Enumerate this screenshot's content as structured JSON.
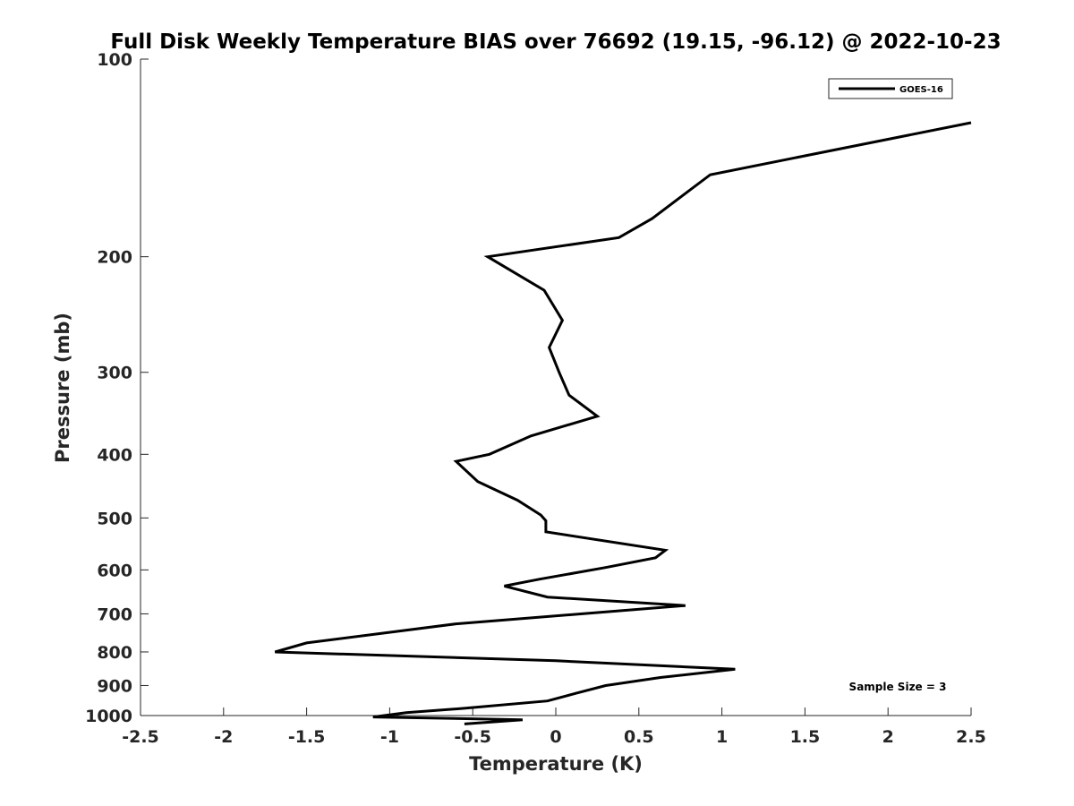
{
  "chart_data": {
    "type": "line",
    "title": "Full Disk Weekly Temperature BIAS over 76692 (19.15, -96.12) @ 2022-10-23",
    "xlabel": "Temperature (K)",
    "ylabel": "Pressure (mb)",
    "xlim": [
      -2.5,
      2.5
    ],
    "ylim": [
      100,
      1000
    ],
    "yscale": "log",
    "y_reversed": true,
    "xticks": [
      -2.5,
      -2,
      -1.5,
      -1,
      -0.5,
      0,
      0.5,
      1,
      1.5,
      2,
      2.5
    ],
    "xtick_labels": [
      "-2.5",
      "-2",
      "-1.5",
      "-1",
      "-0.5",
      "0",
      "0.5",
      "1",
      "1.5",
      "2",
      "2.5"
    ],
    "yticks": [
      100,
      200,
      300,
      400,
      500,
      600,
      700,
      800,
      900,
      1000
    ],
    "ytick_labels": [
      "100",
      "200",
      "300",
      "400",
      "500",
      "600",
      "700",
      "800",
      "900",
      "1000"
    ],
    "grid": false,
    "legend_position": "top-right",
    "annotation": "Sample Size = 3",
    "series": [
      {
        "name": "GOES-16",
        "color": "#000000",
        "x": [
          2.5,
          0.93,
          0.58,
          0.38,
          -0.41,
          -0.07,
          0.04,
          -0.04,
          0.02,
          0.08,
          0.25,
          -0.15,
          -0.4,
          -0.6,
          -0.47,
          -0.23,
          -0.09,
          -0.06,
          -0.06,
          0.66,
          0.6,
          0.3,
          -0.1,
          -0.31,
          -0.05,
          0.78,
          0.15,
          -0.6,
          -1.5,
          -1.69,
          0.0,
          1.08,
          0.63,
          0.3,
          0.12,
          -0.05,
          -0.55,
          -0.9,
          -1.1,
          -0.2,
          -0.55
        ],
        "y": [
          125,
          150,
          175,
          187,
          200,
          225,
          250,
          275,
          300,
          325,
          350,
          375,
          400,
          410,
          440,
          470,
          495,
          505,
          525,
          560,
          575,
          595,
          620,
          635,
          660,
          680,
          700,
          725,
          775,
          800,
          825,
          850,
          875,
          900,
          925,
          950,
          975,
          990,
          1005,
          1015,
          1030
        ]
      }
    ]
  }
}
